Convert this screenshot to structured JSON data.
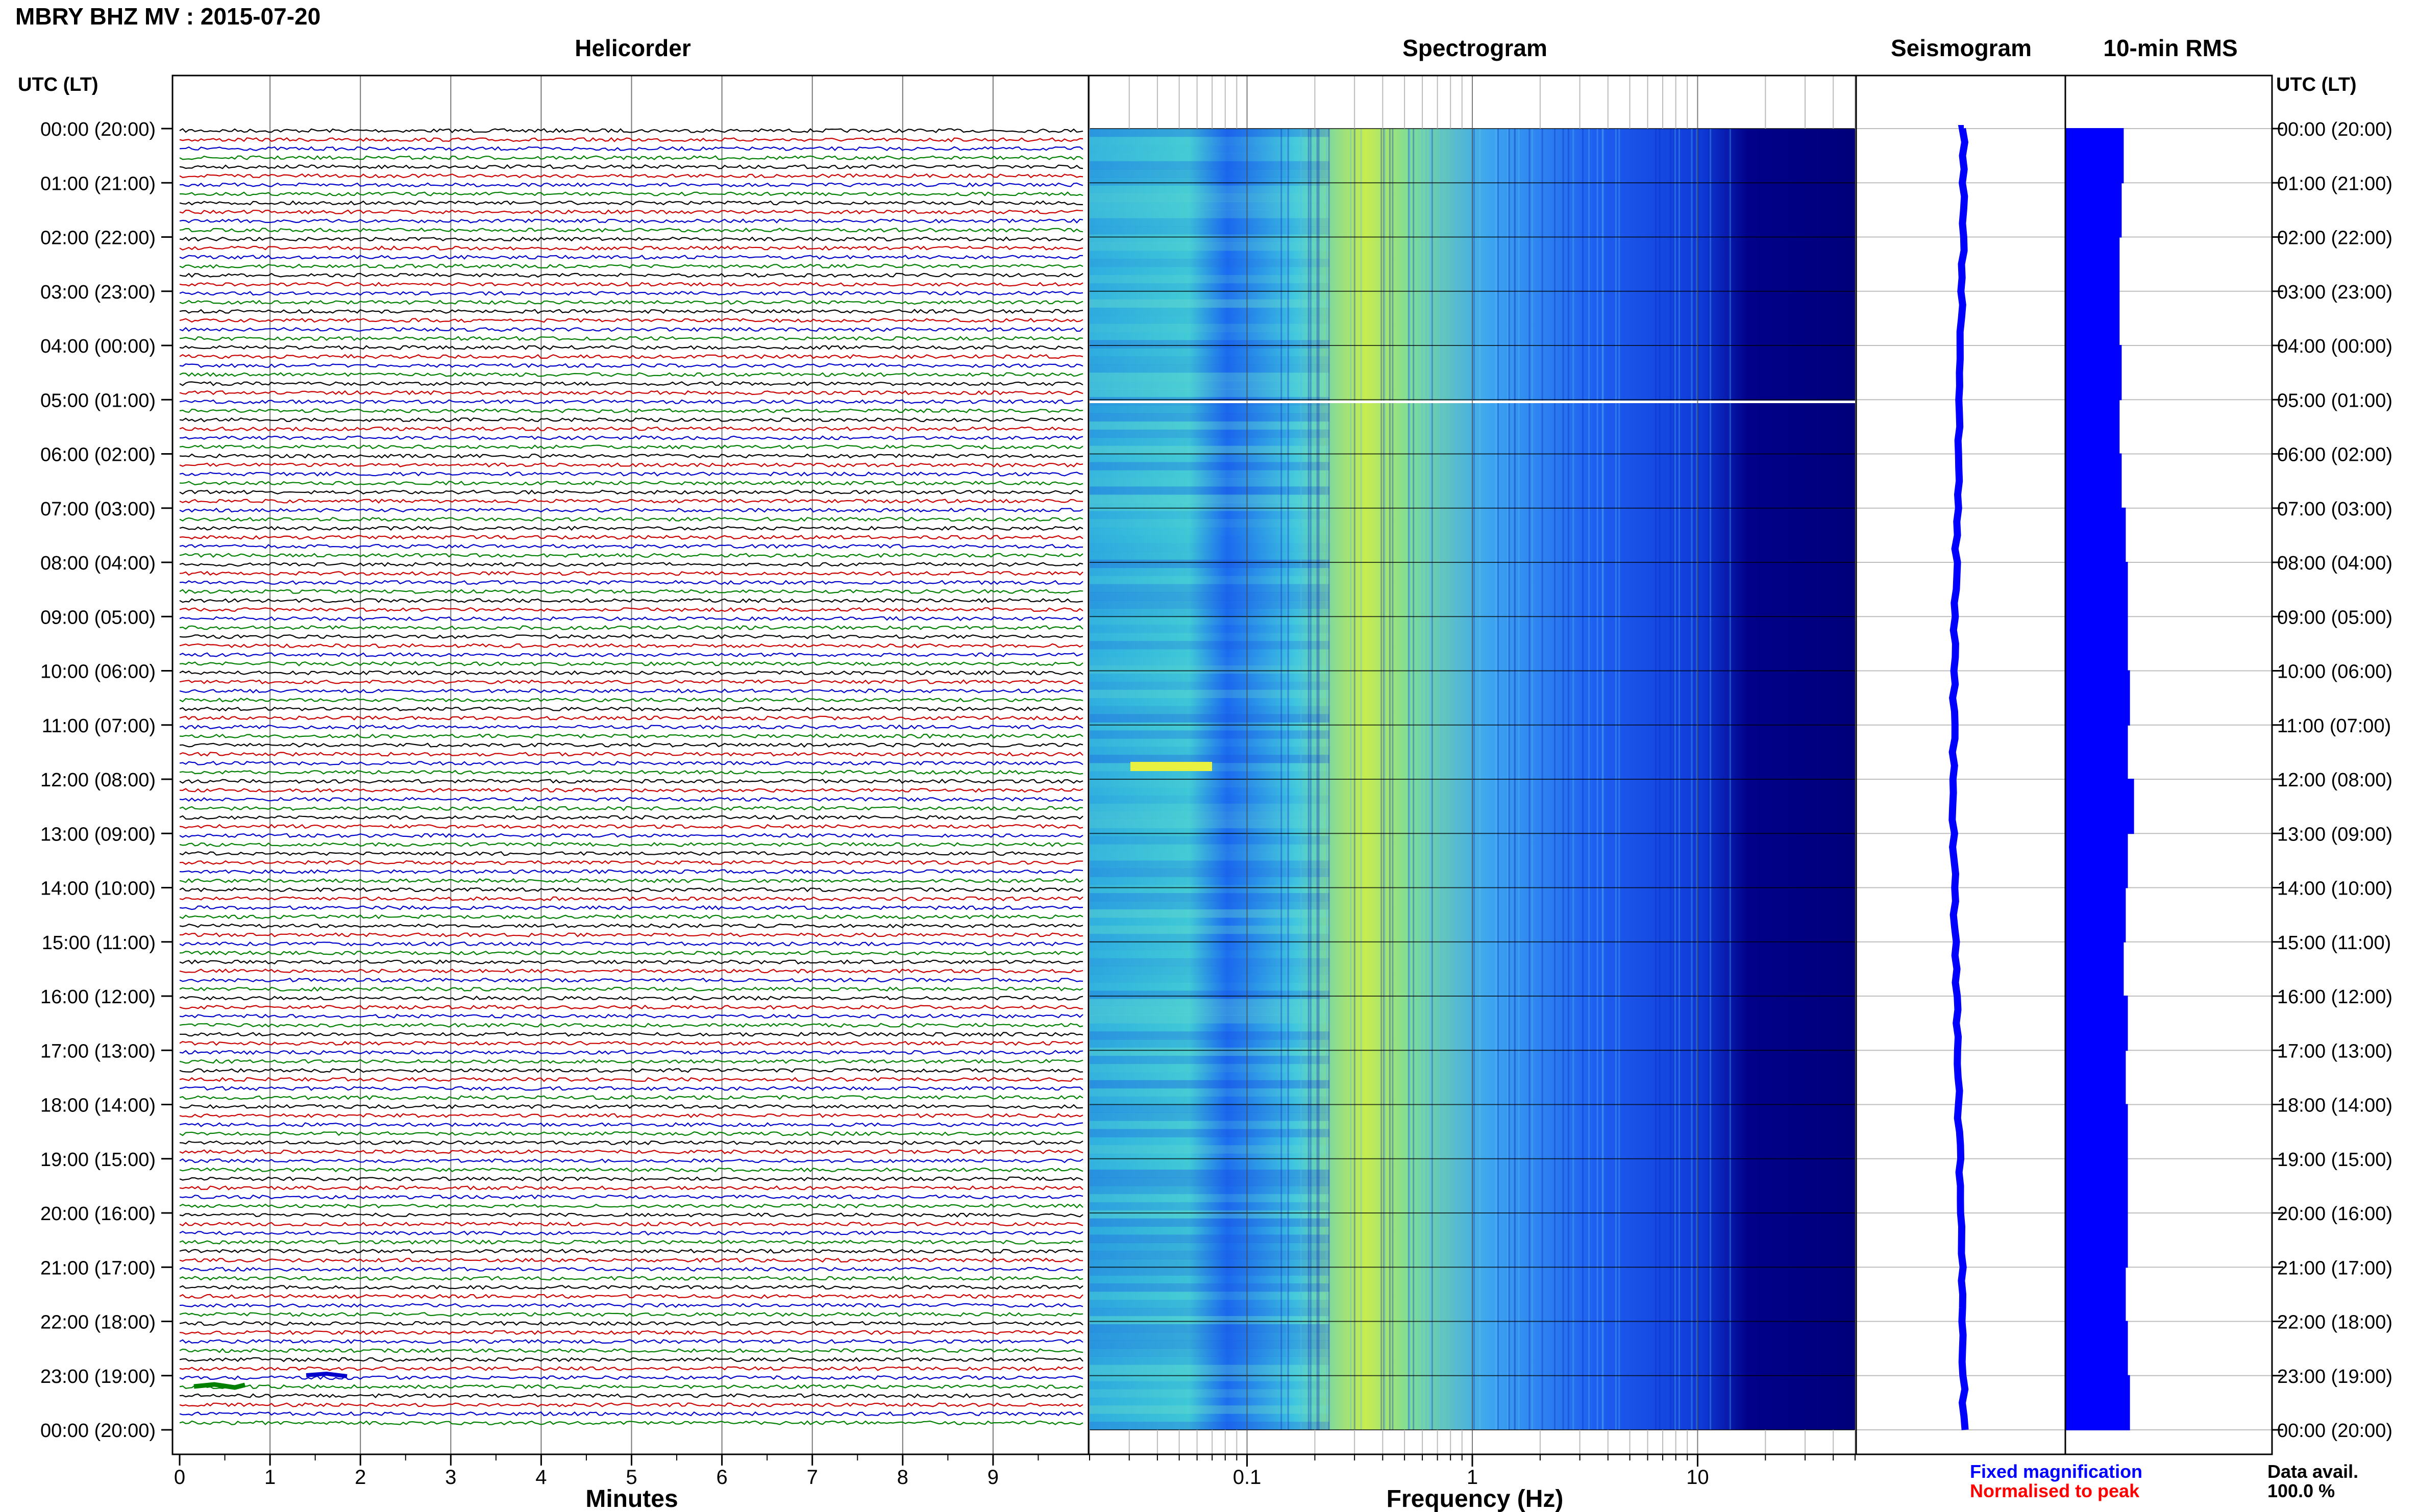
{
  "header": {
    "title": "MBRY BHZ MV : 2015-07-20"
  },
  "panels": {
    "helicorder": "Helicorder",
    "spectrogram": "Spectrogram",
    "seismogram": "Seismogram",
    "rms": "10-min RMS"
  },
  "axis": {
    "time_label": "UTC (LT)",
    "time_label_right": "UTC (LT)",
    "minutes_label": "Minutes",
    "frequency_label": "Frequency (Hz)",
    "minute_ticks": [
      "0",
      "1",
      "2",
      "3",
      "4",
      "5",
      "6",
      "7",
      "8",
      "9"
    ],
    "frequency_ticks": [
      "0.1",
      "1",
      "10"
    ],
    "hour_labels": [
      "00:00 (20:00)",
      "01:00 (21:00)",
      "02:00 (22:00)",
      "03:00 (23:00)",
      "04:00 (00:00)",
      "05:00 (01:00)",
      "06:00 (02:00)",
      "07:00 (03:00)",
      "08:00 (04:00)",
      "09:00 (05:00)",
      "10:00 (06:00)",
      "11:00 (07:00)",
      "12:00 (08:00)",
      "13:00 (09:00)",
      "14:00 (10:00)",
      "15:00 (11:00)",
      "16:00 (12:00)",
      "17:00 (13:00)",
      "18:00 (14:00)",
      "19:00 (15:00)",
      "20:00 (16:00)",
      "21:00 (17:00)",
      "22:00 (18:00)",
      "23:00 (19:00)",
      "00:00 (20:00)"
    ]
  },
  "legend": {
    "fixed": "Fixed magnification",
    "normalised": "Normalised to peak",
    "fixed_color": "#0000ff",
    "normalised_color": "#ff0000"
  },
  "availability": {
    "label": "Data avail.",
    "value": "100.0 %"
  },
  "colors": {
    "trace_cycle": [
      "#000000",
      "#cc0000",
      "#0000cc",
      "#008000"
    ],
    "spectro_low": "#00007a",
    "spectro_mid": "#1a66ff",
    "spectro_high": "#e6f23a",
    "seismo": "#0000ff",
    "rms": "#0000ff"
  },
  "chart_data": {
    "type": "heatmap",
    "helicorder": {
      "rows": 144,
      "row_minutes": 10,
      "x_range_minutes": [
        0,
        10
      ]
    },
    "spectrogram": {
      "x_scale": "log",
      "x_range_hz": [
        0.02,
        50
      ],
      "peak_band_hz": [
        0.3,
        0.6
      ]
    },
    "rms": {
      "x_range": [
        0,
        1
      ],
      "values_per_hour": [
        0.28,
        0.27,
        0.26,
        0.26,
        0.27,
        0.26,
        0.27,
        0.29,
        0.3,
        0.3,
        0.31,
        0.3,
        0.33,
        0.3,
        0.29,
        0.28,
        0.3,
        0.29,
        0.3,
        0.3,
        0.3,
        0.29,
        0.3,
        0.31
      ]
    }
  }
}
